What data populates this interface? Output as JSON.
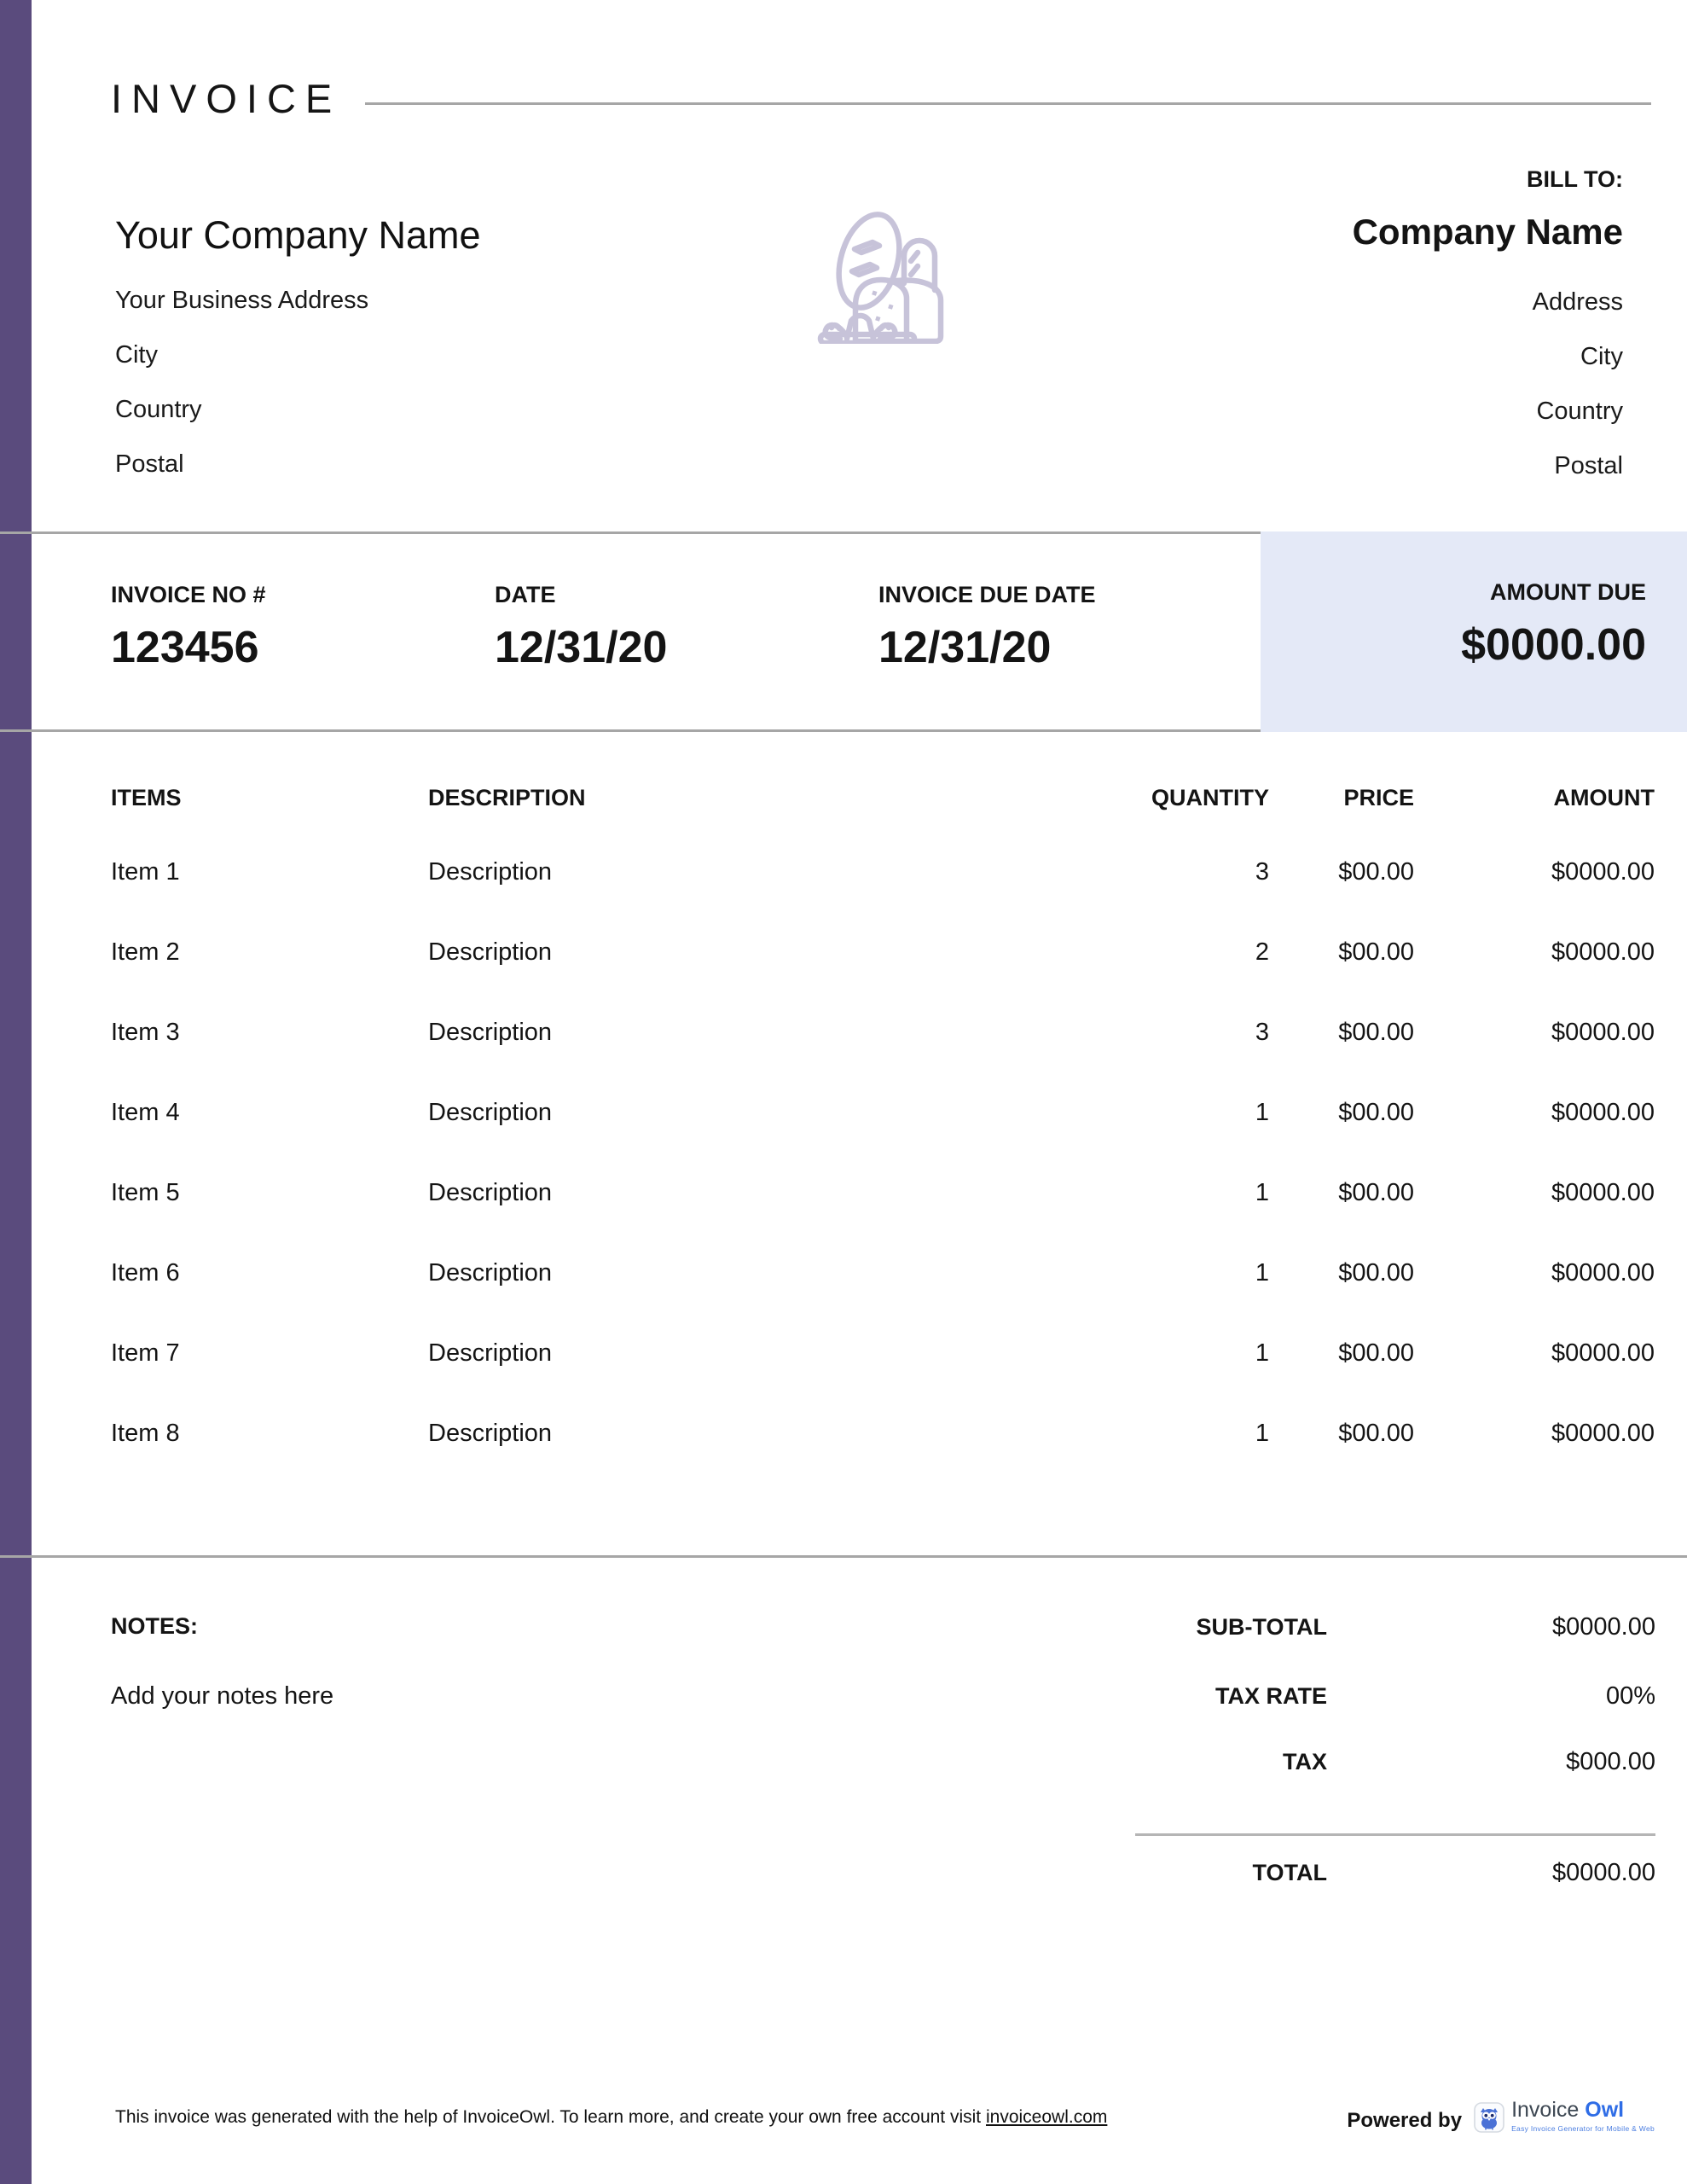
{
  "title": "INVOICE",
  "company": {
    "name": "Your Company Name",
    "address_lines": [
      "Your Business Address",
      "City",
      "Country",
      "Postal"
    ]
  },
  "bill_to": {
    "label": "BILL TO:",
    "name": "Company Name",
    "address_lines": [
      "Address",
      "City",
      "Country",
      "Postal"
    ]
  },
  "summary": {
    "invoice_no_label": "INVOICE NO #",
    "invoice_no": "123456",
    "date_label": "DATE",
    "date": "12/31/20",
    "due_date_label": "INVOICE DUE DATE",
    "due_date": "12/31/20",
    "amount_due_label": "AMOUNT DUE",
    "amount_due": "$0000.00"
  },
  "table": {
    "headers": [
      "ITEMS",
      "DESCRIPTION",
      "QUANTITY",
      "PRICE",
      "AMOUNT"
    ],
    "rows": [
      {
        "item": "Item 1",
        "description": "Description",
        "quantity": "3",
        "price": "$00.00",
        "amount": "$0000.00"
      },
      {
        "item": "Item 2",
        "description": "Description",
        "quantity": "2",
        "price": "$00.00",
        "amount": "$0000.00"
      },
      {
        "item": "Item 3",
        "description": "Description",
        "quantity": "3",
        "price": "$00.00",
        "amount": "$0000.00"
      },
      {
        "item": "Item 4",
        "description": "Description",
        "quantity": "1",
        "price": "$00.00",
        "amount": "$0000.00"
      },
      {
        "item": "Item 5",
        "description": "Description",
        "quantity": "1",
        "price": "$00.00",
        "amount": "$0000.00"
      },
      {
        "item": "Item 6",
        "description": "Description",
        "quantity": "1",
        "price": "$00.00",
        "amount": "$0000.00"
      },
      {
        "item": "Item 7",
        "description": "Description",
        "quantity": "1",
        "price": "$00.00",
        "amount": "$0000.00"
      },
      {
        "item": "Item 8",
        "description": "Description",
        "quantity": "1",
        "price": "$00.00",
        "amount": "$0000.00"
      }
    ]
  },
  "notes": {
    "label": "NOTES:",
    "placeholder": "Add your notes here"
  },
  "totals": {
    "rows": [
      {
        "label": "SUB-TOTAL",
        "value": "$0000.00"
      },
      {
        "label": "TAX RATE",
        "value": "00%"
      },
      {
        "label": "TAX",
        "value": "$000.00"
      }
    ],
    "total": {
      "label": "TOTAL",
      "value": "$0000.00"
    }
  },
  "footer": {
    "text_before_link": "This invoice was generated with the help of InvoiceOwl. To learn more, and create your own free account visit ",
    "link": "invoiceowl.com",
    "powered_by": "Powered by",
    "brand_first": "Invoice",
    "brand_second": "Owl",
    "brand_tagline": "Easy Invoice Generator for Mobile & Web"
  },
  "icons": {
    "header_icon": "bakery-bread-icon",
    "brand_icon": "owl-icon"
  },
  "colors": {
    "sidebar": "#5a4b7d",
    "amount_panel": "#e4e9f7",
    "rule": "#a6a6a6",
    "divider": "#b5b5b5",
    "icon": "#c7c3d9",
    "brand_blue": "#2f6de6",
    "brand_dark": "#3d4752",
    "brand_tagline": "#4a7de0"
  }
}
